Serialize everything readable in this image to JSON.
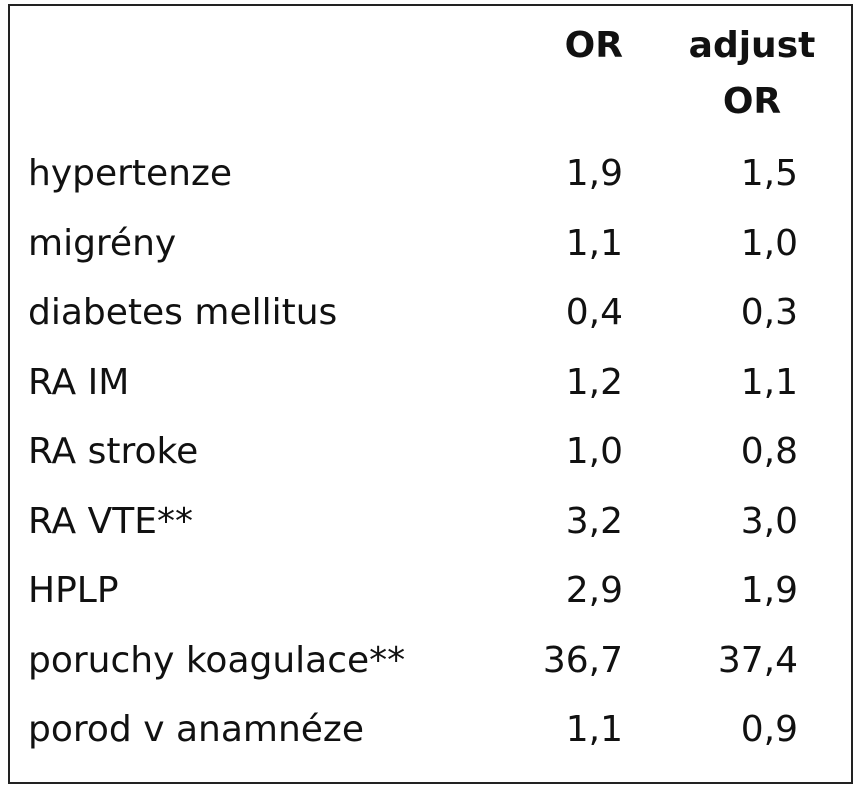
{
  "table": {
    "header": [
      "OR",
      "adjust OR"
    ],
    "rows": [
      [
        "hypertenze",
        "1,9",
        "1,5"
      ],
      [
        "migrény",
        "1,1",
        "1,0"
      ],
      [
        "diabetes mellitus",
        "0,4",
        "0,3"
      ],
      [
        "RA IM",
        "1,2",
        "1,1"
      ],
      [
        "RA stroke",
        "1,0",
        "0,8"
      ],
      [
        "RA VTE**",
        "3,2",
        "3,0"
      ],
      [
        "HPLP",
        "2,9",
        "1,9"
      ],
      [
        "poruchy koagulace**",
        "36,7",
        "37,4"
      ],
      [
        "porod v anamnéze",
        "1,1",
        "0,9"
      ]
    ]
  }
}
